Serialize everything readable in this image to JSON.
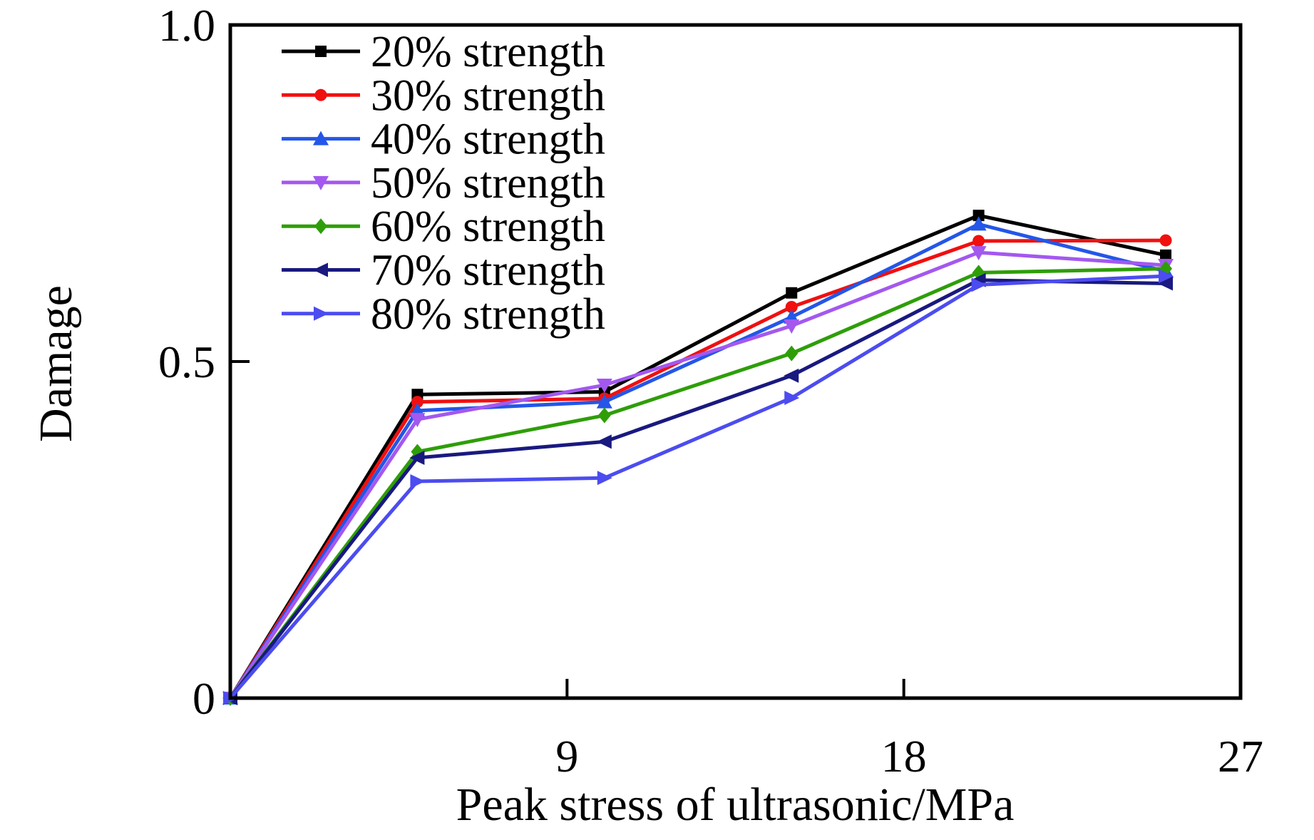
{
  "chart_data": {
    "type": "line",
    "title": "",
    "xlabel": "Peak stress of ultrasonic/MPa",
    "ylabel": "Damage",
    "xlim": [
      0,
      27
    ],
    "ylim": [
      0,
      1.0
    ],
    "grid": false,
    "legend_position": "top-left-inside",
    "xticks": [
      {
        "value": 9,
        "label": "9"
      },
      {
        "value": 18,
        "label": "18"
      },
      {
        "value": 27,
        "label": "27"
      }
    ],
    "yticks": [
      {
        "value": 0,
        "label": "0"
      },
      {
        "value": 0.5,
        "label": "0.5"
      },
      {
        "value": 1.0,
        "label": "1.0"
      }
    ],
    "x": [
      0,
      5,
      10,
      15,
      20,
      25
    ],
    "series": [
      {
        "name": "20% strength",
        "color": "#000000",
        "marker": "square",
        "values": [
          0,
          0.451,
          0.455,
          0.602,
          0.717,
          0.658
        ]
      },
      {
        "name": "30% strength",
        "color": "#f01010",
        "marker": "circle",
        "values": [
          0,
          0.44,
          0.445,
          0.581,
          0.679,
          0.68
        ]
      },
      {
        "name": "40% strength",
        "color": "#2456e8",
        "marker": "triangle-up",
        "values": [
          0,
          0.427,
          0.44,
          0.566,
          0.704,
          0.634
        ]
      },
      {
        "name": "50% strength",
        "color": "#a358ef",
        "marker": "triangle-down",
        "values": [
          0,
          0.414,
          0.465,
          0.553,
          0.662,
          0.643
        ]
      },
      {
        "name": "60% strength",
        "color": "#2e9e08",
        "marker": "diamond",
        "values": [
          0,
          0.366,
          0.42,
          0.512,
          0.632,
          0.638
        ]
      },
      {
        "name": "70% strength",
        "color": "#191980",
        "marker": "triangle-left",
        "values": [
          0,
          0.357,
          0.381,
          0.479,
          0.621,
          0.616
        ]
      },
      {
        "name": "80% strength",
        "color": "#4c4cf0",
        "marker": "triangle-right",
        "values": [
          0,
          0.322,
          0.327,
          0.446,
          0.614,
          0.627
        ]
      }
    ]
  }
}
